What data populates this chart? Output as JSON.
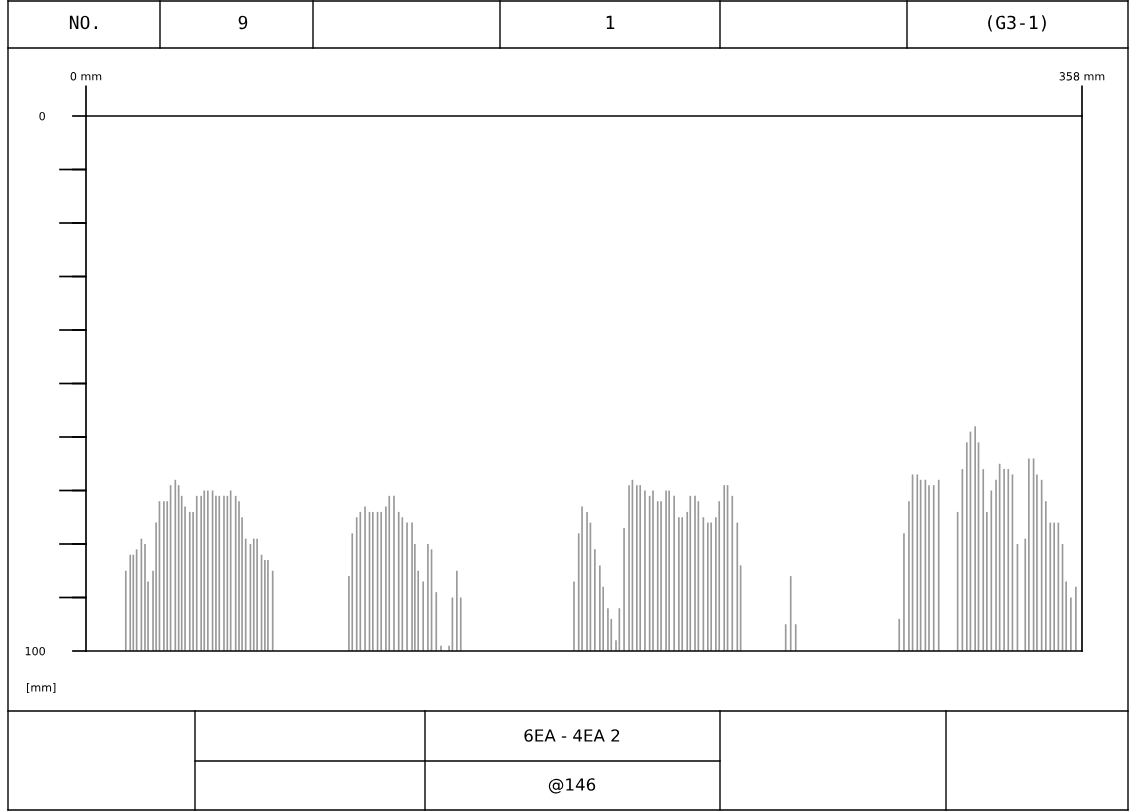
{
  "chart_data": {
    "type": "bar",
    "ylabel": "[mm]",
    "color": "#999999",
    "annotations": [
      "NO.",
      "9",
      "1",
      "(G3-1)",
      "6EA - 4EA 2",
      "@146"
    ],
    "xlim": [
      0,
      358
    ],
    "xticks": [
      {
        "value": 0,
        "label": "0 mm"
      },
      {
        "value": 358,
        "label": "358 mm"
      }
    ],
    "ylim": [
      100,
      0
    ],
    "yticks": [
      0,
      {
        "value": 10,
        "label": null
      },
      {
        "value": 20,
        "label": null
      },
      {
        "value": 30,
        "label": null
      },
      {
        "value": 40,
        "label": null
      },
      {
        "value": 50,
        "label": null
      },
      {
        "value": 60,
        "label": null
      },
      {
        "value": 70,
        "label": null
      },
      {
        "value": 80,
        "label": null
      },
      {
        "value": 90,
        "label": null
      },
      100
    ],
    "x": [
      14.3,
      15.9,
      17.0,
      18.2,
      19.9,
      21.2,
      22.3,
      24.1,
      25.2,
      26.4,
      28.0,
      29.2,
      30.4,
      32.1,
      33.3,
      34.4,
      35.6,
      37.3,
      38.5,
      39.8,
      41.4,
      42.5,
      43.8,
      45.5,
      46.7,
      47.9,
      49.6,
      50.8,
      52.0,
      53.8,
      55.0,
      56.1,
      57.4,
      59.1,
      60.3,
      61.5,
      63.1,
      64.3,
      65.4,
      67.1,
      94.5,
      95.7,
      97.3,
      98.6,
      100.3,
      101.9,
      103.1,
      104.8,
      106.1,
      107.8,
      109.0,
      110.7,
      112.4,
      113.7,
      115.4,
      117.2,
      118.2,
      119.4,
      121.2,
      122.9,
      124.2,
      125.9,
      127.6,
      130.5,
      131.7,
      133.3,
      134.7,
      175.4,
      177.1,
      178.3,
      180.1,
      181.3,
      182.9,
      184.7,
      185.9,
      187.6,
      188.8,
      190.5,
      191.7,
      193.4,
      195.2,
      196.4,
      198.0,
      199.2,
      200.9,
      202.6,
      203.8,
      205.5,
      206.7,
      208.5,
      209.6,
      211.4,
      213.1,
      214.3,
      216.1,
      217.2,
      218.9,
      220.1,
      221.9,
      223.5,
      224.7,
      226.4,
      227.6,
      229.4,
      230.6,
      232.3,
      234.1,
      235.3,
      251.5,
      253.3,
      255.1,
      292.3,
      294.0,
      295.8,
      297.1,
      298.8,
      300.0,
      301.7,
      303.0,
      304.7,
      306.5,
      313.3,
      315.0,
      316.6,
      317.9,
      319.6,
      320.8,
      322.5,
      323.8,
      325.4,
      327.1,
      328.4,
      330.0,
      331.5,
      333.0,
      334.8,
      337.6,
      338.9,
      340.6,
      341.8,
      343.5,
      345.0,
      346.6,
      348.0,
      349.5,
      351.0,
      352.3,
      354.0,
      355.8
    ],
    "base": [
      100,
      100,
      100,
      100,
      100,
      100,
      100,
      100,
      100,
      100,
      100,
      100,
      100,
      100,
      100,
      100,
      100,
      100,
      100,
      100,
      100,
      100,
      100,
      100,
      100,
      100,
      100,
      100,
      100,
      100,
      100,
      100,
      100,
      100,
      100,
      100,
      100,
      100,
      100,
      100,
      100,
      100,
      100,
      100,
      100,
      100,
      100,
      100,
      100,
      100,
      100,
      100,
      100,
      100,
      100,
      100,
      100,
      100,
      100,
      100,
      100,
      100,
      100,
      100,
      100,
      100,
      100,
      100,
      100,
      100,
      100,
      100,
      100,
      100,
      100,
      100,
      100,
      100,
      100,
      100,
      100,
      100,
      100,
      100,
      100,
      100,
      100,
      100,
      100,
      100,
      100,
      100,
      100,
      100,
      100,
      100,
      100,
      100,
      100,
      100,
      100,
      100,
      100,
      100,
      100,
      100,
      100,
      100,
      100,
      100,
      100,
      100,
      100,
      100,
      100,
      100,
      100,
      100,
      100,
      100,
      100,
      100,
      100,
      100,
      100,
      100,
      100,
      100,
      100,
      100,
      100,
      100,
      100,
      100,
      100,
      100,
      100,
      100,
      100,
      100,
      100,
      100,
      100,
      100,
      100,
      100,
      100,
      100,
      100
    ],
    "values": [
      -15,
      -18,
      -18,
      -19,
      -21,
      -20,
      -13,
      -15,
      -24,
      -28,
      -28,
      -28,
      -31,
      -32,
      -31,
      -29,
      -27,
      -26,
      -26,
      -29,
      -29,
      -30,
      -30,
      -30,
      -29,
      -29,
      -29,
      -29,
      -30,
      -29,
      -28,
      -25,
      -21,
      -20,
      -21,
      -21,
      -18,
      -17,
      -17,
      -15,
      -14,
      -22,
      -25,
      -26,
      -27,
      -26,
      -26,
      -26,
      -26,
      -27,
      -29,
      -29,
      -26,
      -25,
      -24,
      -24,
      -20,
      -15,
      -13,
      -20,
      -19,
      -11,
      -1,
      -1,
      -10,
      -15,
      -10,
      -13,
      -22,
      -27,
      -26,
      -24,
      -19,
      -16,
      -12,
      -8,
      -6,
      -2,
      -8,
      -23,
      -31,
      -32,
      -31,
      -31,
      -30,
      -29,
      -30,
      -28,
      -28,
      -30,
      -30,
      -29,
      -25,
      -25,
      -26,
      -29,
      -29,
      -28,
      -25,
      -24,
      -24,
      -25,
      -28,
      -31,
      -31,
      -29,
      -24,
      -16,
      -5,
      -14,
      -5,
      -6,
      -22,
      -28,
      -33,
      -33,
      -32,
      -32,
      -31,
      -31,
      -32,
      -26,
      -34,
      -39,
      -41,
      -42,
      -39,
      -34,
      -26,
      -30,
      -32,
      -35,
      -34,
      -34,
      -33,
      -20,
      -21,
      -36,
      -36,
      -33,
      -32,
      -28,
      -24,
      -24,
      -24,
      -20,
      -13,
      -10,
      -12
    ]
  }
}
